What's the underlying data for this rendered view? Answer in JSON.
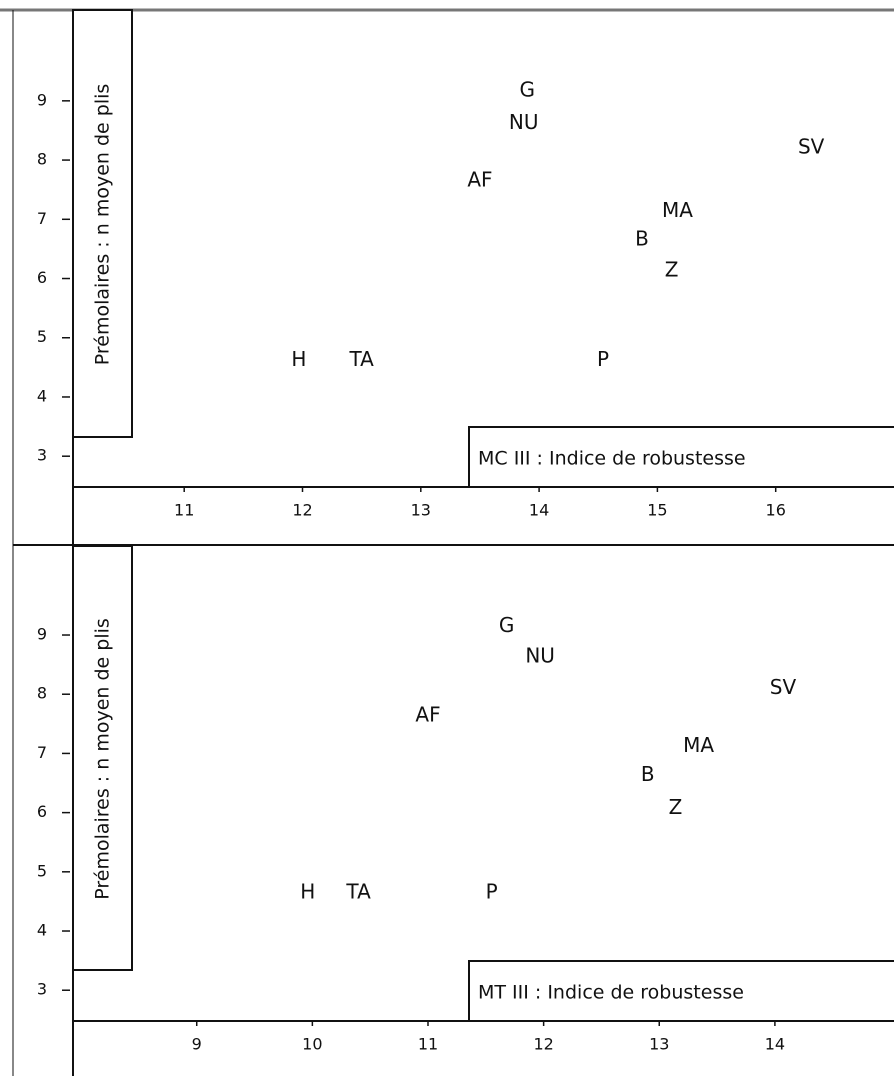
{
  "chart_data": [
    {
      "type": "scatter",
      "xlabel": "MC III : Indice de robustesse",
      "ylabel": "Prémolaires : n moyen de plis",
      "labels": [
        "G",
        "NU",
        "AF",
        "SV",
        "MA",
        "B",
        "Z",
        "H",
        "TA",
        "P"
      ],
      "x": [
        13.9,
        13.87,
        13.5,
        16.3,
        15.17,
        14.87,
        15.12,
        11.97,
        12.5,
        14.54
      ],
      "values": [
        9.17,
        8.62,
        7.65,
        8.2,
        7.13,
        6.65,
        6.13,
        4.62,
        4.62,
        4.62
      ],
      "xlim": [
        10.06,
        17.0
      ],
      "ylim": [
        2.48,
        10.5
      ],
      "xticks": [
        11,
        12,
        13,
        14,
        15,
        16
      ],
      "yticks": [
        3,
        4,
        5,
        6,
        7,
        8,
        9
      ]
    },
    {
      "type": "scatter",
      "xlabel": "MT III : Indice de robustesse",
      "ylabel": "Prémolaires : n moyen de plis",
      "labels": [
        "G",
        "NU",
        "AF",
        "SV",
        "MA",
        "B",
        "Z",
        "H",
        "TA",
        "P"
      ],
      "x": [
        11.68,
        11.97,
        11.0,
        14.07,
        13.34,
        12.9,
        13.14,
        9.96,
        10.4,
        11.55
      ],
      "values": [
        9.14,
        8.63,
        7.63,
        8.1,
        7.12,
        6.63,
        6.07,
        4.64,
        4.64,
        4.64
      ],
      "xlim": [
        7.93,
        15.03
      ],
      "ylim": [
        2.48,
        10.47
      ],
      "xticks": [
        9,
        10,
        11,
        12,
        13,
        14
      ],
      "yticks": [
        3,
        4,
        5,
        6,
        7,
        8,
        9
      ]
    }
  ]
}
